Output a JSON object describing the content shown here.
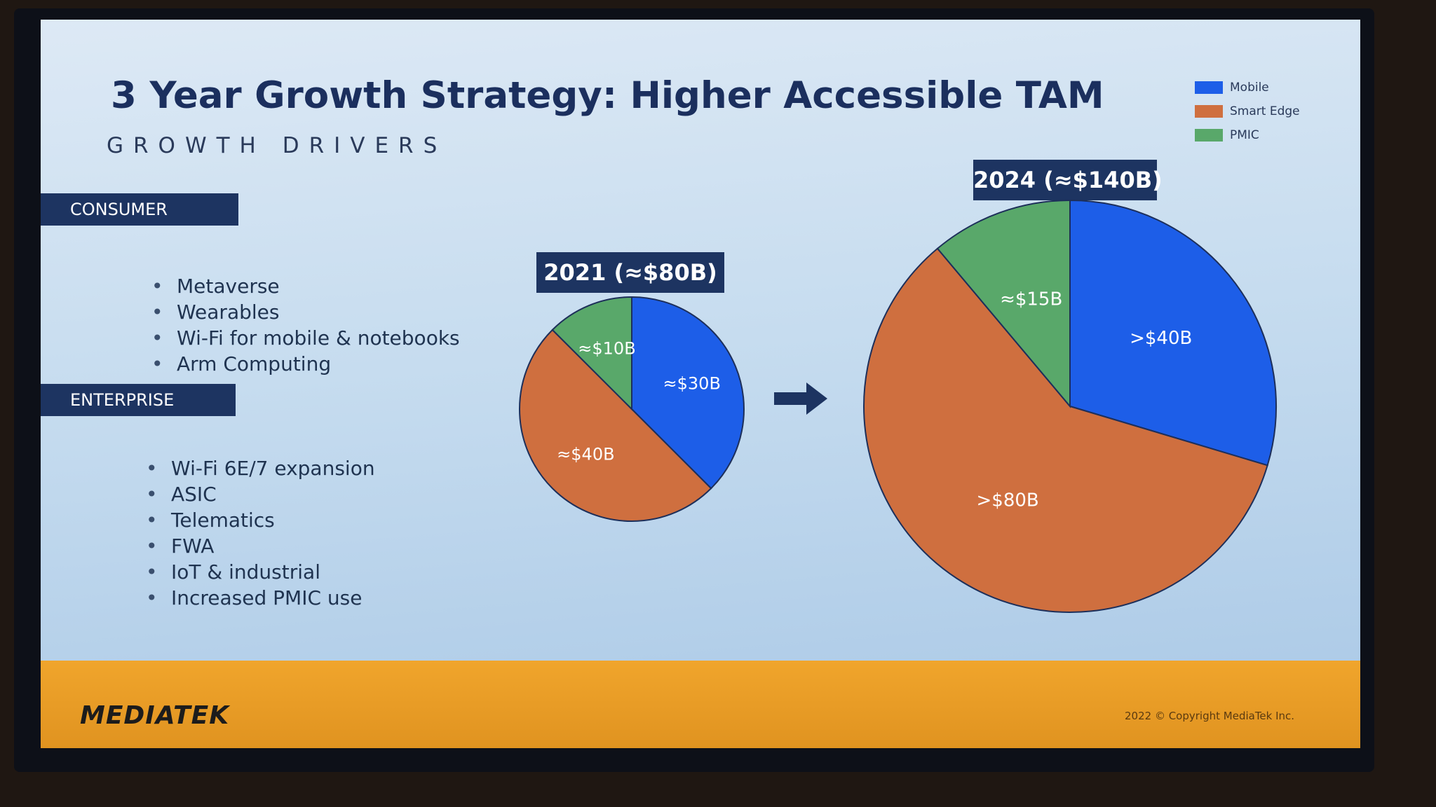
{
  "slide": {
    "title": "3 Year Growth Strategy: Higher Accessible TAM",
    "subtitle": "GROWTH DRIVERS"
  },
  "consumer": {
    "label": "CONSUMER",
    "items": [
      "Metaverse",
      "Wearables",
      "Wi-Fi for mobile & notebooks",
      "Arm Computing"
    ]
  },
  "enterprise": {
    "label": "ENTERPRISE",
    "items": [
      "Wi-Fi 6E/7 expansion",
      "ASIC",
      "Telematics",
      "FWA",
      "IoT & industrial",
      "Increased PMIC use"
    ]
  },
  "legend": {
    "items": [
      {
        "label": "Mobile",
        "color": "#1d5ee8"
      },
      {
        "label": "Smart Edge",
        "color": "#cf6f3f"
      },
      {
        "label": "PMIC",
        "color": "#59a86a"
      }
    ]
  },
  "footer": {
    "logo": "MEDIATEK",
    "copyright": "2022 © Copyright MediaTek Inc."
  },
  "icons": {
    "transition_arrow": "right-arrow-icon"
  },
  "chart_data": [
    {
      "type": "pie",
      "title": "2021 (≈$80B)",
      "categories": [
        "Mobile",
        "Smart Edge",
        "PMIC"
      ],
      "values": [
        30,
        40,
        10
      ],
      "labels": [
        "≈$30B",
        "≈$40B",
        "≈$10B"
      ],
      "colors": [
        "#1d5ee8",
        "#cf6f3f",
        "#59a86a"
      ]
    },
    {
      "type": "pie",
      "title": "2024 (≈$140B)",
      "categories": [
        "Mobile",
        "Smart Edge",
        "PMIC"
      ],
      "values": [
        40,
        80,
        15
      ],
      "labels": [
        ">$40B",
        ">$80B",
        "≈$15B"
      ],
      "colors": [
        "#1d5ee8",
        "#cf6f3f",
        "#59a86a"
      ]
    }
  ]
}
